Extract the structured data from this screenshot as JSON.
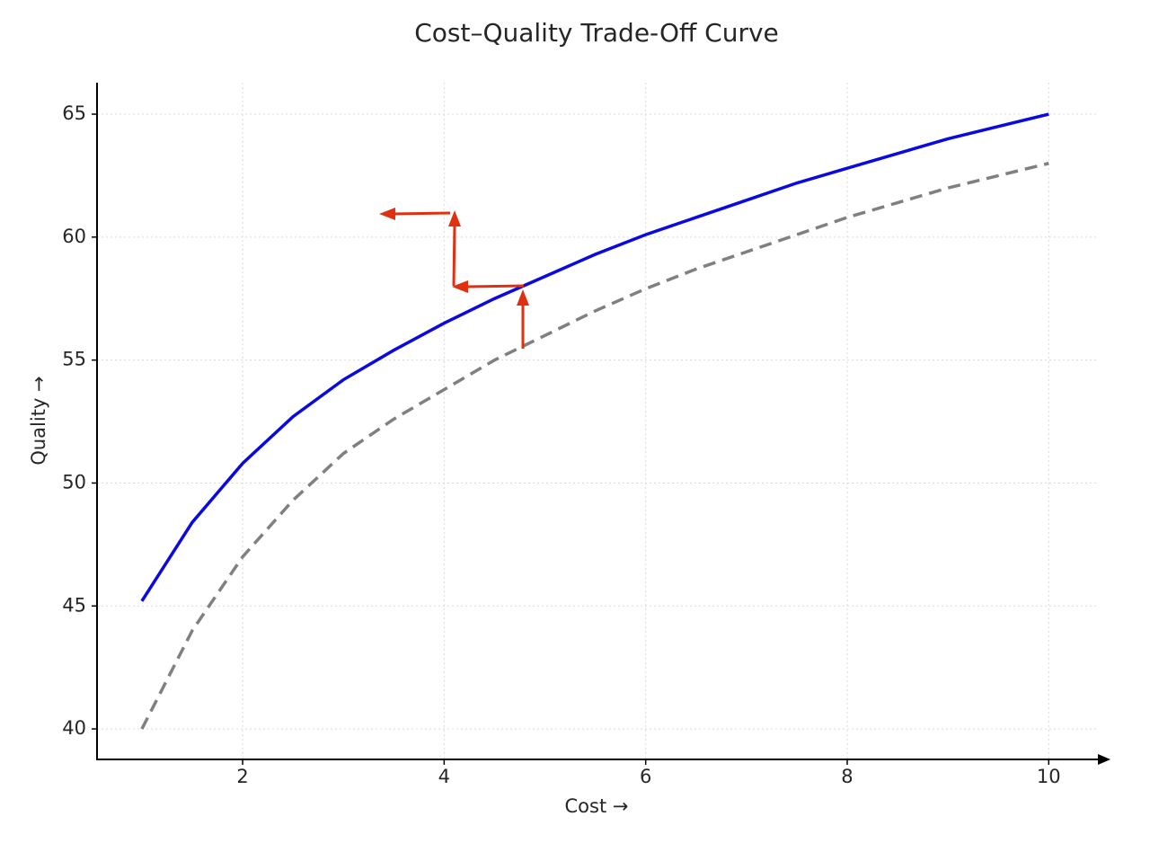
{
  "chart_data": {
    "type": "line",
    "title": "Cost–Quality Trade-Off Curve",
    "x_label": "Cost →",
    "y_label": "Quality →",
    "x": [
      1,
      1.5,
      2,
      2.5,
      3,
      3.5,
      4,
      4.5,
      5,
      5.5,
      6,
      6.5,
      7,
      7.5,
      8,
      8.5,
      9,
      9.5,
      10
    ],
    "series": [
      {
        "color": "#0a0ae0",
        "dash": false,
        "values": [
          45.2,
          48.4,
          50.8,
          52.7,
          54.2,
          55.4,
          56.5,
          57.5,
          58.4,
          59.3,
          60.1,
          60.8,
          61.5,
          62.2,
          62.8,
          63.4,
          64.0,
          64.5,
          65.0
        ]
      },
      {
        "color": "#808080",
        "dash": true,
        "values": [
          40.0,
          44.0,
          47.0,
          49.3,
          51.2,
          52.6,
          53.8,
          55.0,
          56.0,
          57.0,
          57.9,
          58.7,
          59.4,
          60.1,
          60.8,
          61.4,
          62.0,
          62.5,
          63.0
        ]
      }
    ],
    "xlim": [
      0.555,
      10.47
    ],
    "xticks": [
      2,
      4,
      6,
      8,
      10
    ],
    "ylim": [
      38.76,
      66.28
    ],
    "yticks": [
      40,
      45,
      50,
      55,
      60,
      65
    ],
    "grid": true
  }
}
